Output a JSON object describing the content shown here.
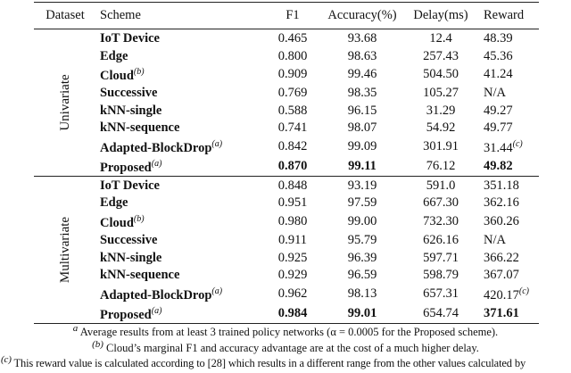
{
  "headers": [
    "Dataset",
    "Scheme",
    "F1",
    "Accuracy(%)",
    "Delay(ms)",
    "Reward"
  ],
  "groups": [
    {
      "dataset": "Univariate",
      "rows": [
        {
          "scheme": "IoT Device",
          "sup": "",
          "f1": "0.465",
          "acc": "93.68",
          "delay": "12.4",
          "reward": "48.39",
          "reward_sup": "",
          "bold": false
        },
        {
          "scheme": "Edge",
          "sup": "",
          "f1": "0.800",
          "acc": "98.63",
          "delay": "257.43",
          "reward": "45.36",
          "reward_sup": "",
          "bold": false
        },
        {
          "scheme": "Cloud",
          "sup": "(b)",
          "f1": "0.909",
          "acc": "99.46",
          "delay": "504.50",
          "reward": "41.24",
          "reward_sup": "",
          "bold": false
        },
        {
          "scheme": "Successive",
          "sup": "",
          "f1": "0.769",
          "acc": "98.35",
          "delay": "105.27",
          "reward": "N/A",
          "reward_sup": "",
          "bold": false
        },
        {
          "scheme": "kNN-single",
          "sup": "",
          "f1": "0.588",
          "acc": "96.15",
          "delay": "31.29",
          "reward": "49.27",
          "reward_sup": "",
          "bold": false
        },
        {
          "scheme": "kNN-sequence",
          "sup": "",
          "f1": "0.741",
          "acc": "98.07",
          "delay": "54.92",
          "reward": "49.77",
          "reward_sup": "",
          "bold": false
        },
        {
          "scheme": "Adapted-BlockDrop",
          "sup": "(a)",
          "f1": "0.842",
          "acc": "99.09",
          "delay": "301.91",
          "reward": "31.44",
          "reward_sup": "(c)",
          "bold": false
        },
        {
          "scheme": "Proposed",
          "sup": "(a)",
          "f1": "0.870",
          "acc": "99.11",
          "delay": "76.12",
          "reward": "49.82",
          "reward_sup": "",
          "bold": true
        }
      ]
    },
    {
      "dataset": "Multivariate",
      "rows": [
        {
          "scheme": "IoT Device",
          "sup": "",
          "f1": "0.848",
          "acc": "93.19",
          "delay": "591.0",
          "reward": "351.18",
          "reward_sup": "",
          "bold": false
        },
        {
          "scheme": "Edge",
          "sup": "",
          "f1": "0.951",
          "acc": "97.59",
          "delay": "667.30",
          "reward": "362.16",
          "reward_sup": "",
          "bold": false
        },
        {
          "scheme": "Cloud",
          "sup": "(b)",
          "f1": "0.980",
          "acc": "99.00",
          "delay": "732.30",
          "reward": "360.26",
          "reward_sup": "",
          "bold": false
        },
        {
          "scheme": "Successive",
          "sup": "",
          "f1": "0.911",
          "acc": "95.79",
          "delay": "626.16",
          "reward": "N/A",
          "reward_sup": "",
          "bold": false
        },
        {
          "scheme": "kNN-single",
          "sup": "",
          "f1": "0.925",
          "acc": "96.39",
          "delay": "597.71",
          "reward": "366.22",
          "reward_sup": "",
          "bold": false
        },
        {
          "scheme": "kNN-sequence",
          "sup": "",
          "f1": "0.929",
          "acc": "96.59",
          "delay": "598.79",
          "reward": "367.07",
          "reward_sup": "",
          "bold": false
        },
        {
          "scheme": "Adapted-BlockDrop",
          "sup": "(a)",
          "f1": "0.962",
          "acc": "98.13",
          "delay": "657.31",
          "reward": "420.17",
          "reward_sup": "(c)",
          "bold": false
        },
        {
          "scheme": "Proposed",
          "sup": "(a)",
          "f1": "0.984",
          "acc": "99.01",
          "delay": "654.74",
          "reward": "371.61",
          "reward_sup": "",
          "bold": true
        }
      ]
    }
  ],
  "notes": [
    {
      "mark": "a",
      "text": "Average results from at least 3 trained policy networks (α = 0.0005 for the Proposed scheme)."
    },
    {
      "mark": "(b)",
      "text": "Cloud’s marginal F1 and accuracy advantage are at the cost of a much higher delay."
    },
    {
      "mark": "(c)",
      "text": "This reward value is calculated according to [28] which results in a different range from the other values calculated by"
    }
  ]
}
